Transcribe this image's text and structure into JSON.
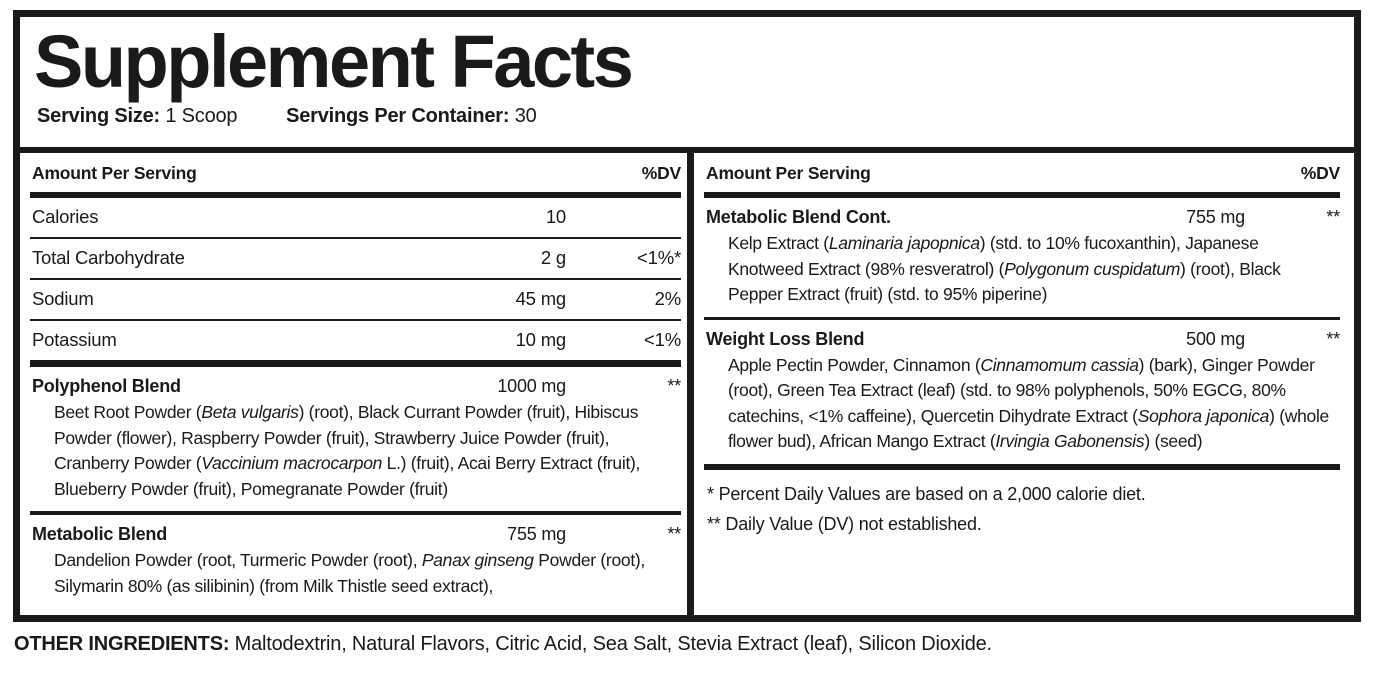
{
  "title": "Supplement Facts",
  "serving": {
    "size_label": "Serving Size:",
    "size_value": "1 Scoop",
    "container_label": "Servings Per Container:",
    "container_value": "30"
  },
  "column_header": {
    "amount": "Amount Per Serving",
    "dv": "%DV"
  },
  "left": {
    "nutrients": [
      {
        "name": "Calories",
        "amount": "10",
        "dv": ""
      },
      {
        "name": "Total Carbohydrate",
        "amount": "2 g",
        "dv": "<1%*"
      },
      {
        "name": "Sodium",
        "amount": "45 mg",
        "dv": "2%"
      },
      {
        "name": "Potassium",
        "amount": "10 mg",
        "dv": "<1%"
      }
    ],
    "blends": [
      {
        "name": "Polyphenol Blend",
        "amount": "1000 mg",
        "dv": "**",
        "ingredients": [
          {
            "text": "Beet Root Powder ("
          },
          {
            "text": "Beta vulgaris",
            "italic": true
          },
          {
            "text": ") (root), Black Currant Powder (fruit), Hibiscus Powder (flower), Raspberry Powder (fruit), Strawberry Juice Powder (fruit), Cranberry Powder ("
          },
          {
            "text": "Vaccinium macrocarpon",
            "italic": true
          },
          {
            "text": " L.) (fruit), Acai Berry Extract (fruit), Blueberry Powder (fruit), Pomegranate Powder (fruit)"
          }
        ]
      },
      {
        "name": "Metabolic Blend",
        "amount": "755 mg",
        "dv": "**",
        "ingredients": [
          {
            "text": "Dandelion Powder (root, Turmeric Powder (root), "
          },
          {
            "text": "Panax ginseng",
            "italic": true
          },
          {
            "text": " Powder (root), Silymarin 80% (as silibinin) (from Milk Thistle seed extract),"
          }
        ]
      }
    ]
  },
  "right": {
    "blends": [
      {
        "name": "Metabolic Blend Cont.",
        "amount": "755 mg",
        "dv": "**",
        "ingredients": [
          {
            "text": "Kelp Extract ("
          },
          {
            "text": "Laminaria japopnica",
            "italic": true
          },
          {
            "text": ") (std. to 10% fucoxanthin), Japanese Knotweed Extract (98% resveratrol) ("
          },
          {
            "text": "Polygonum cuspidatum",
            "italic": true
          },
          {
            "text": ") (root), Black Pepper Extract (fruit)  (std. to 95% piperine)"
          }
        ]
      },
      {
        "name": "Weight Loss Blend",
        "amount": "500 mg",
        "dv": "**",
        "ingredients": [
          {
            "text": "Apple Pectin Powder, Cinnamon ("
          },
          {
            "text": "Cinnamomum cassia",
            "italic": true
          },
          {
            "text": ") (bark), Ginger Powder (root), Green Tea Extract (leaf) (std. to 98% polyphenols, 50% EGCG, 80% catechins, <1% caffeine), Quercetin Dihydrate Extract ("
          },
          {
            "text": "Sophora japonica",
            "italic": true
          },
          {
            "text": ") (whole flower bud), African Mango Extract ("
          },
          {
            "text": "Irvingia Gabonensis",
            "italic": true
          },
          {
            "text": ") (seed)"
          }
        ]
      }
    ],
    "footnotes": [
      "* Percent Daily Values are based on a 2,000 calorie diet.",
      "** Daily Value (DV) not established."
    ]
  },
  "other_ingredients": {
    "label": "OTHER INGREDIENTS:",
    "value": " Maltodextrin, Natural Flavors, Citric Acid, Sea Salt, Stevia Extract (leaf), Silicon Dioxide."
  },
  "colors": {
    "ink": "#1a1a1a",
    "background": "#ffffff"
  }
}
